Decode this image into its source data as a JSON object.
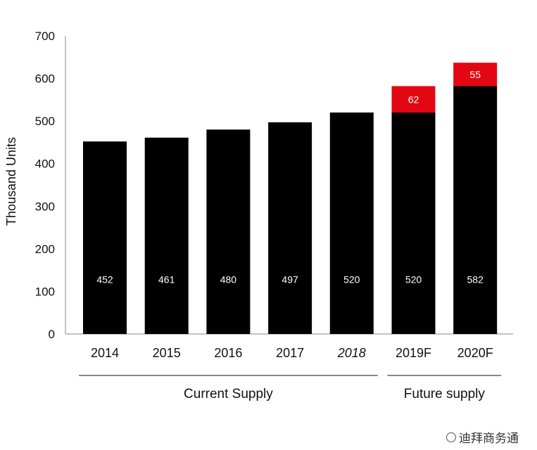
{
  "chart_data": {
    "type": "bar",
    "stacked": true,
    "ylabel": "Thousand Units",
    "ylim": [
      0,
      700
    ],
    "yticks": [
      0,
      100,
      200,
      300,
      400,
      500,
      600,
      700
    ],
    "categories": [
      "2014",
      "2015",
      "2016",
      "2017",
      "2018",
      "2019F",
      "2020F"
    ],
    "highlight_category": "2018",
    "series": [
      {
        "values": [
          452,
          461,
          480,
          497,
          520,
          520,
          582
        ],
        "color": "#000000",
        "label_color": "#ffffff"
      },
      {
        "values": [
          0,
          0,
          0,
          0,
          0,
          62,
          55
        ],
        "color": "#e30613",
        "label_color": "#ffffff"
      }
    ],
    "groups": [
      {
        "label": "Current Supply",
        "categories": [
          "2014",
          "2015",
          "2016",
          "2017",
          "2018"
        ]
      },
      {
        "label": "Future supply",
        "categories": [
          "2019F",
          "2020F"
        ]
      }
    ],
    "grid": false,
    "colors": {
      "primary": "#000000",
      "accent": "#e30613",
      "axis": "#888888"
    }
  },
  "watermark": {
    "text": "迪拜商务通",
    "icon": "wechat-icon"
  }
}
